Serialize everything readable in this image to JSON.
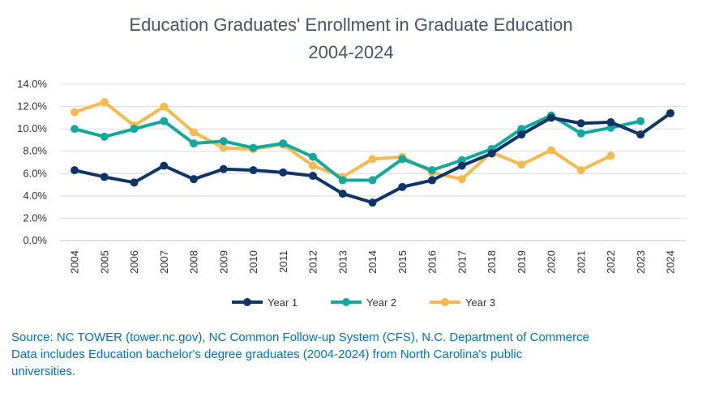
{
  "chart_data": {
    "type": "line",
    "title": "Education Graduates' Enrollment in Graduate Education",
    "subtitle": "2004-2024",
    "xlabel": "",
    "ylabel": "",
    "ylim": [
      0,
      14
    ],
    "y_ticks": [
      "0.0%",
      "2.0%",
      "4.0%",
      "6.0%",
      "8.0%",
      "10.0%",
      "12.0%",
      "14.0%"
    ],
    "grid": true,
    "legend_position": "bottom",
    "categories": [
      "2004",
      "2005",
      "2006",
      "2007",
      "2008",
      "2009",
      "2010",
      "2011",
      "2012",
      "2013",
      "2014",
      "2015",
      "2016",
      "2017",
      "2018",
      "2019",
      "2020",
      "2021",
      "2022",
      "2023",
      "2024"
    ],
    "series": [
      {
        "name": "Year 1",
        "color": "#0F3566",
        "values": [
          6.3,
          5.7,
          5.2,
          6.7,
          5.5,
          6.4,
          6.3,
          6.1,
          5.8,
          4.2,
          3.4,
          4.8,
          5.4,
          6.7,
          7.8,
          9.5,
          11.0,
          10.5,
          10.6,
          9.5,
          11.4
        ]
      },
      {
        "name": "Year 2",
        "color": "#13A89E",
        "values": [
          10.0,
          9.3,
          10.0,
          10.7,
          8.7,
          8.9,
          8.3,
          8.7,
          7.5,
          5.4,
          5.4,
          7.3,
          6.3,
          7.2,
          8.2,
          10.0,
          11.2,
          9.6,
          10.1,
          10.7,
          null
        ]
      },
      {
        "name": "Year 3",
        "color": "#F2BA4F",
        "values": [
          11.5,
          12.4,
          10.3,
          12.0,
          9.7,
          8.3,
          8.2,
          8.6,
          6.7,
          5.7,
          7.3,
          7.5,
          6.1,
          5.5,
          7.9,
          6.8,
          8.1,
          6.3,
          7.6,
          null,
          null
        ]
      }
    ]
  },
  "source": {
    "line1": "Source: NC TOWER (tower.nc.gov), NC Common Follow-up System (CFS), N.C. Department of Commerce",
    "line2": "Data includes Education bachelor's degree graduates (2004-2024) from North Carolina's public",
    "line3": "universities."
  }
}
